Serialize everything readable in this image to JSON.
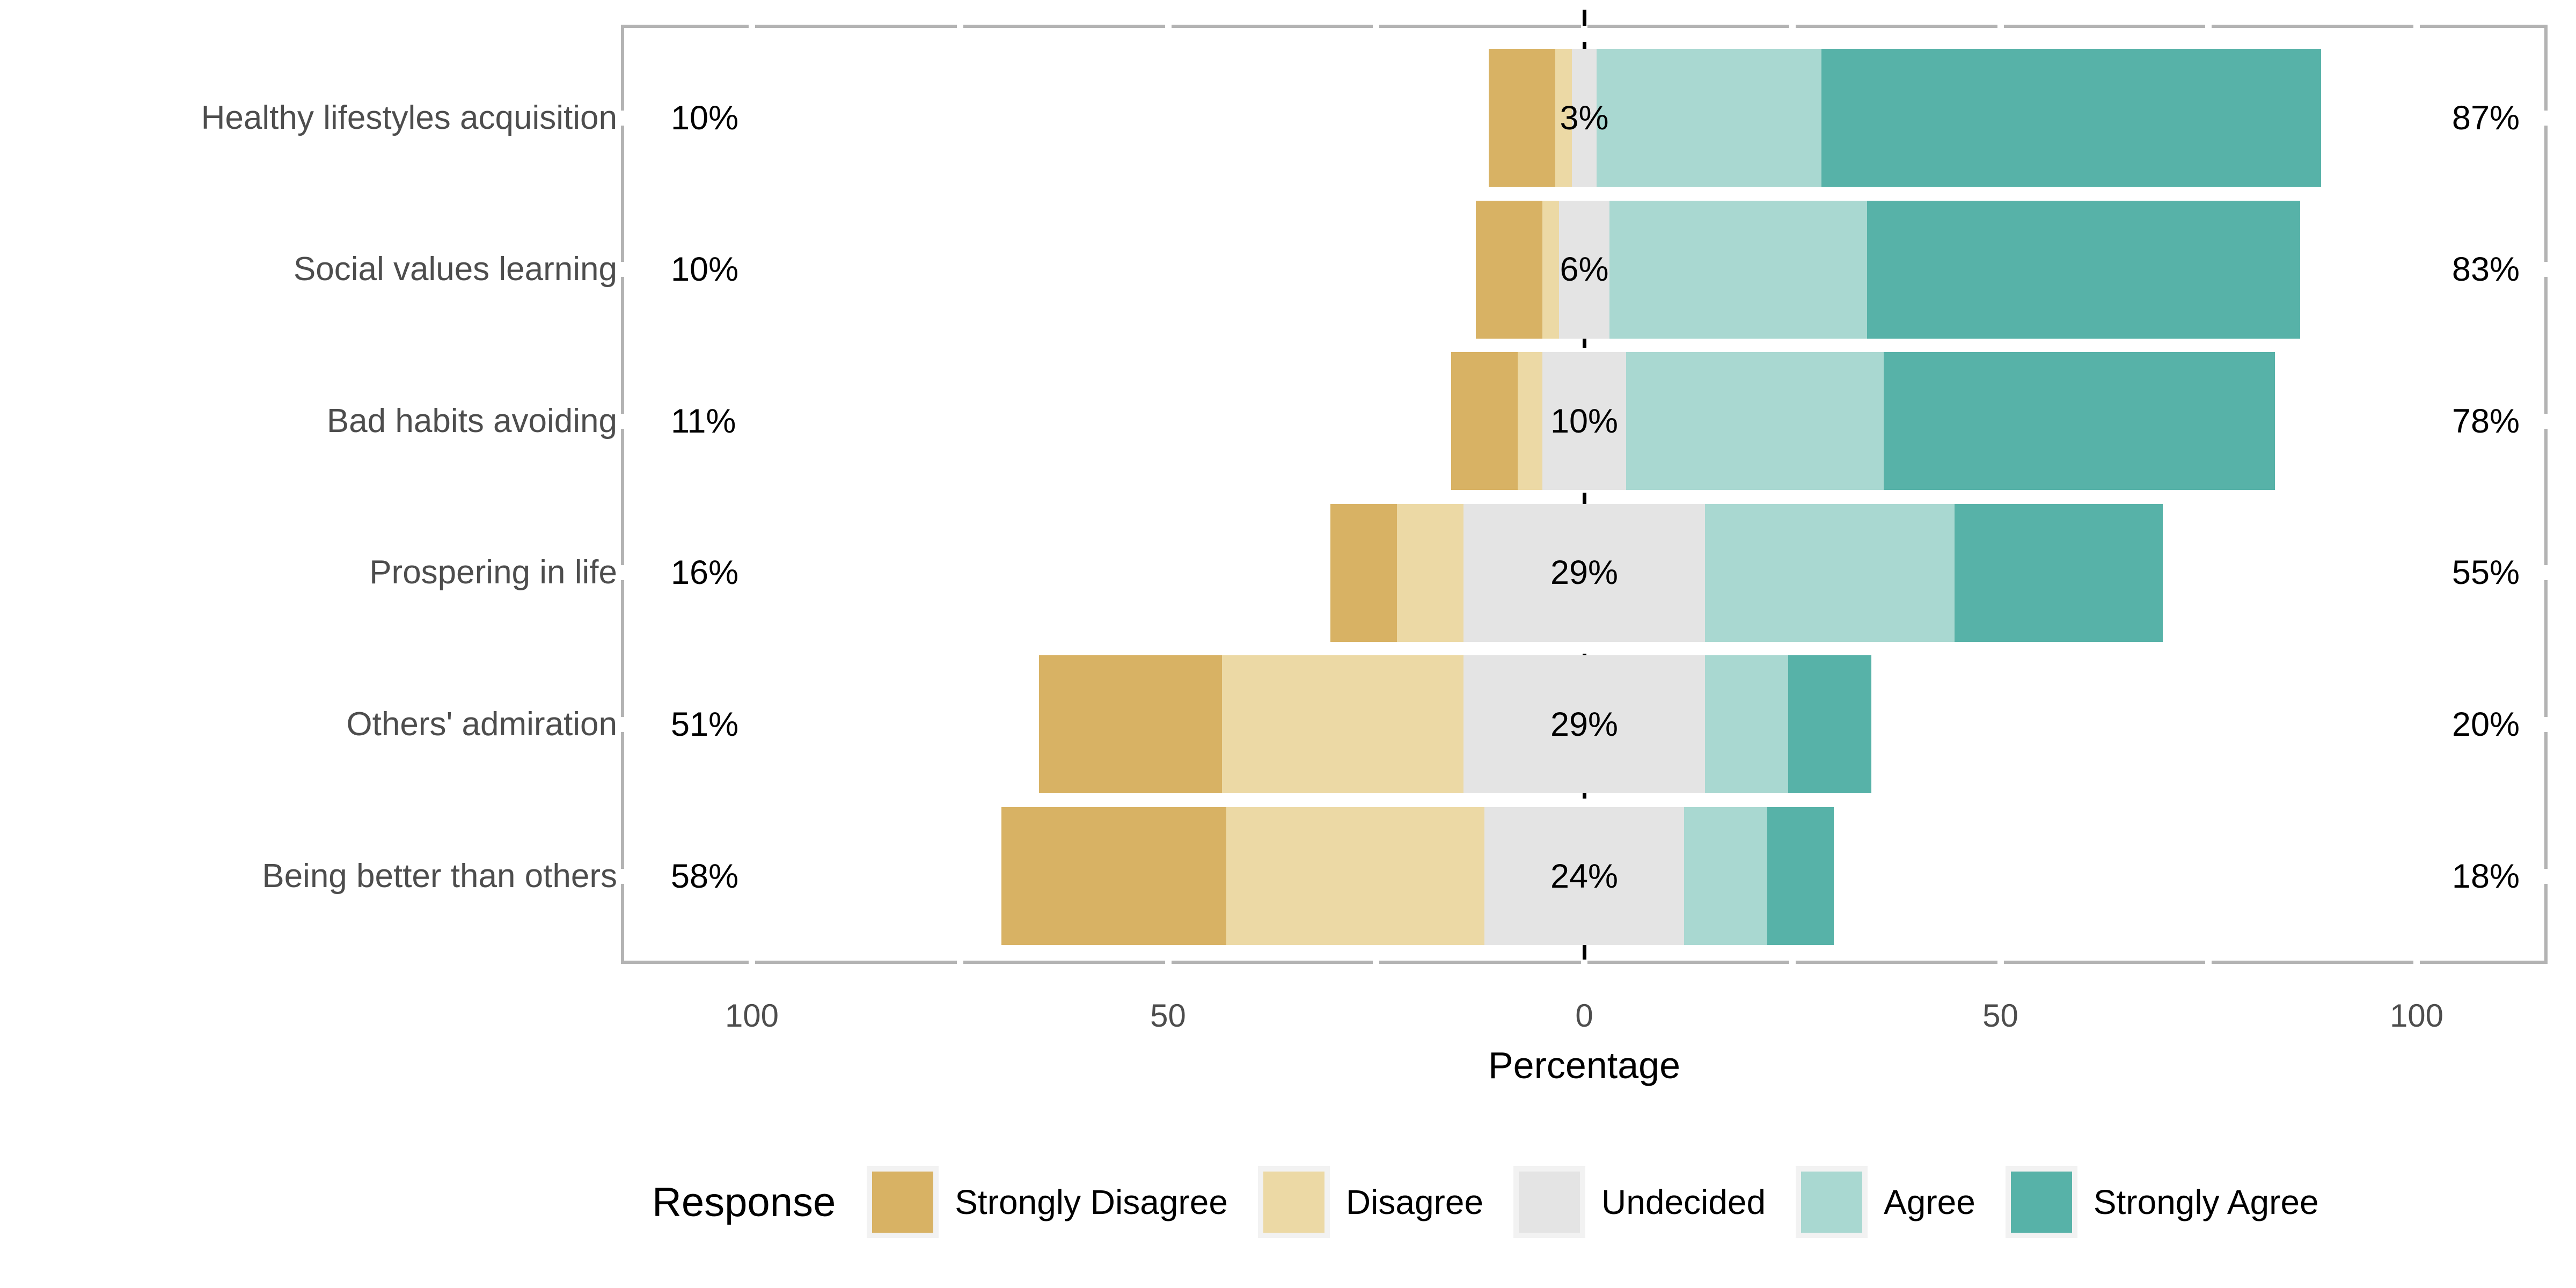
{
  "chart_data": {
    "type": "diverging_stacked_bar",
    "title": "",
    "xlabel": "Percentage",
    "x_axis": {
      "tick_values": [
        -100,
        -50,
        0,
        50,
        100
      ],
      "tick_labels": [
        "100",
        "50",
        "0",
        "50",
        "100"
      ],
      "range_pct": [
        -115.7,
        115.7
      ],
      "grid": false,
      "minor_tick_step": 25
    },
    "legend": {
      "title": "Response",
      "position": "bottom",
      "key_background": "#F2F2F2",
      "items": [
        {
          "label": "Strongly Disagree",
          "color": "#D8B264"
        },
        {
          "label": "Disagree",
          "color": "#ECD9A5"
        },
        {
          "label": "Undecided",
          "color": "#E4E4E4"
        },
        {
          "label": "Agree",
          "color": "#A9D8D1"
        },
        {
          "label": "Strongly Agree",
          "color": "#57B2A8"
        }
      ]
    },
    "categories": [
      "Healthy lifestyles acquisition",
      "Social values learning",
      "Bad habits avoiding",
      "Prospering in life",
      "Others' admiration",
      "Being better than others"
    ],
    "series": [
      {
        "name": "Strongly Disagree",
        "color": "#D8B264",
        "values": [
          8,
          8,
          8,
          8,
          22,
          27
        ]
      },
      {
        "name": "Disagree",
        "color": "#ECD9A5",
        "values": [
          2,
          2,
          3,
          8,
          29,
          31
        ]
      },
      {
        "name": "Undecided",
        "color": "#E4E4E4",
        "values": [
          3,
          6,
          10,
          29,
          29,
          24
        ]
      },
      {
        "name": "Agree",
        "color": "#A9D8D1",
        "values": [
          27,
          31,
          31,
          30,
          10,
          10
        ]
      },
      {
        "name": "Strongly Agree",
        "color": "#57B2A8",
        "values": [
          60,
          52,
          47,
          25,
          10,
          8
        ]
      }
    ],
    "row_labels": {
      "left_totals": [
        "10%",
        "10%",
        "11%",
        "16%",
        "51%",
        "58%"
      ],
      "center_undecided": [
        "3%",
        "6%",
        "10%",
        "29%",
        "29%",
        "24%"
      ],
      "right_totals": [
        "87%",
        "83%",
        "78%",
        "55%",
        "20%",
        "18%"
      ]
    },
    "zero_line": {
      "style": "dashed",
      "color": "#000000"
    },
    "colors": {
      "panel_border": "#B3B3B3",
      "axis_text": "#4D4D4D",
      "category_text": "#4D4D4D",
      "label_text": "#000000",
      "background": "#FFFFFF"
    }
  }
}
